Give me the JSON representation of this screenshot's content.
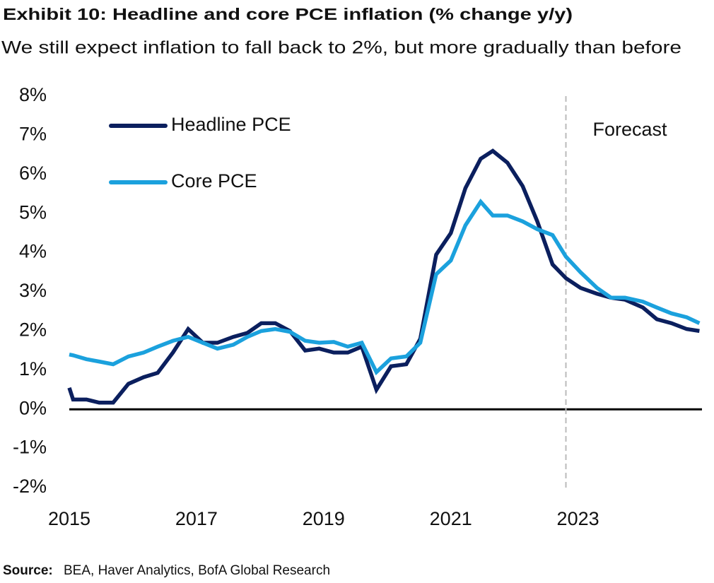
{
  "chart_data": {
    "type": "line",
    "title": "Exhibit 10: Headline and core PCE inflation (% change y/y)",
    "subtitle": "We still expect inflation to fall back to 2%, but more gradually than before",
    "source_label": "Source:",
    "source": "BEA, Haver Analytics, BofA Global Research",
    "x": [
      2015.0,
      2015.06,
      2015.27,
      2015.47,
      2015.69,
      2015.93,
      2016.17,
      2016.39,
      2016.63,
      2016.87,
      2017.1,
      2017.33,
      2017.58,
      2017.8,
      2018.02,
      2018.24,
      2018.47,
      2018.71,
      2018.93,
      2019.16,
      2019.38,
      2019.6,
      2019.83,
      2020.06,
      2020.3,
      2020.52,
      2020.77,
      2021.0,
      2021.23,
      2021.47,
      2021.66,
      2021.89,
      2022.13,
      2022.36,
      2022.6,
      2022.81,
      2023.04,
      2023.3,
      2023.52,
      2023.74,
      2024.02,
      2024.24,
      2024.47,
      2024.71,
      2024.91
    ],
    "series": [
      {
        "name": "Headline PCE",
        "color": "#0b1f5e",
        "values": [
          0.55,
          0.25,
          0.25,
          0.17,
          0.17,
          0.65,
          0.82,
          0.93,
          1.45,
          2.05,
          1.7,
          1.7,
          1.85,
          1.95,
          2.2,
          2.2,
          2.0,
          1.5,
          1.55,
          1.45,
          1.45,
          1.6,
          0.5,
          1.1,
          1.15,
          1.8,
          3.95,
          4.5,
          5.65,
          6.4,
          6.6,
          6.3,
          5.7,
          4.8,
          3.7,
          3.35,
          3.1,
          2.95,
          2.85,
          2.8,
          2.6,
          2.3,
          2.2,
          2.05,
          2.0
        ]
      },
      {
        "name": "Core PCE",
        "color": "#1ba1dd",
        "values": [
          1.4,
          1.38,
          1.28,
          1.22,
          1.15,
          1.35,
          1.45,
          1.6,
          1.75,
          1.85,
          1.7,
          1.55,
          1.65,
          1.85,
          2.0,
          2.05,
          1.98,
          1.75,
          1.7,
          1.72,
          1.6,
          1.7,
          0.95,
          1.3,
          1.35,
          1.7,
          3.45,
          3.8,
          4.7,
          5.3,
          4.95,
          4.95,
          4.8,
          4.6,
          4.45,
          3.9,
          3.5,
          3.1,
          2.85,
          2.85,
          2.75,
          2.6,
          2.45,
          2.35,
          2.2
        ]
      }
    ],
    "xlim": [
      2015,
      2024.95
    ],
    "xticks": [
      2015,
      2017,
      2019,
      2021,
      2023
    ],
    "ylim": [
      -2,
      8
    ],
    "yticks": [
      {
        "value": -2,
        "label": "-2%"
      },
      {
        "value": -1,
        "label": "-1%"
      },
      {
        "value": 0,
        "label": "0%"
      },
      {
        "value": 1,
        "label": "1%"
      },
      {
        "value": 2,
        "label": "2%"
      },
      {
        "value": 3,
        "label": "3%"
      },
      {
        "value": 4,
        "label": "4%"
      },
      {
        "value": 5,
        "label": "5%"
      },
      {
        "value": 6,
        "label": "6%"
      },
      {
        "value": 7,
        "label": "7%"
      },
      {
        "value": 8,
        "label": "8%"
      }
    ],
    "forecast_start": 2022.81,
    "forecast_label": "Forecast",
    "grid": false,
    "legend": "upper left"
  }
}
